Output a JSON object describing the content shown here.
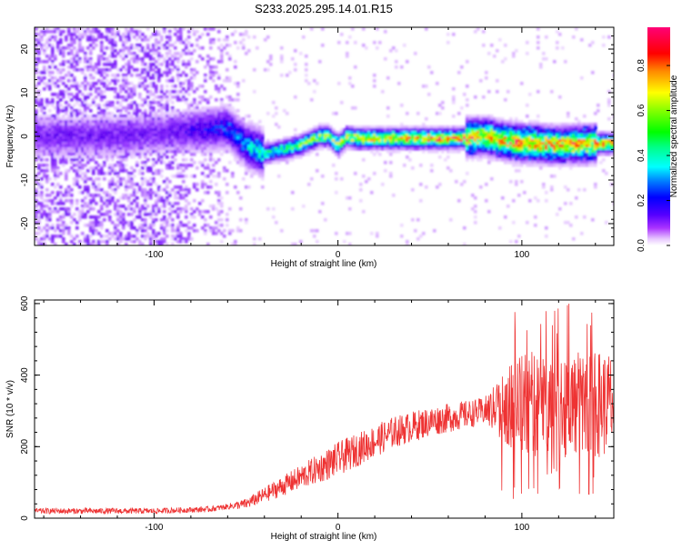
{
  "title": "S233.2025.295.14.01.R15",
  "colors": {
    "snr_line": "#ee3333",
    "background": "#ffffff",
    "axis": "#000000"
  },
  "colorbar": {
    "label": "Normalized spectral amplitude",
    "ticks": [
      0.0,
      0.2,
      0.4,
      0.6,
      0.8
    ],
    "tick_labels": [
      "0.0",
      "0.2",
      "0.4",
      "0.6",
      "0.8"
    ],
    "range": [
      0,
      0.97
    ]
  },
  "chart_data": [
    {
      "type": "heatmap",
      "name": "spectrogram",
      "xlabel": "Height of straight line (km)",
      "ylabel": "Frequency (Hz)",
      "xlim": [
        -165,
        150
      ],
      "ylim": [
        -25,
        25
      ],
      "xticks": [
        -100,
        0,
        100
      ],
      "xtick_labels": [
        "-100",
        "0",
        "100"
      ],
      "yticks": [
        -20,
        -10,
        0,
        10,
        20
      ],
      "ytick_labels": [
        "-20",
        "-10",
        "0",
        "10",
        "20"
      ],
      "ridge": {
        "x": [
          -165,
          -120,
          -90,
          -60,
          -50,
          -40,
          -30,
          -20,
          -10,
          -5,
          0,
          5,
          10,
          30,
          60,
          80,
          90,
          100,
          120,
          150
        ],
        "y": [
          0,
          0,
          1,
          2,
          -2,
          -4,
          -3,
          -2,
          0,
          0,
          -2,
          0,
          -0.5,
          -0.5,
          -0.5,
          0,
          -1,
          -1.5,
          -2,
          -1.5
        ]
      }
    },
    {
      "type": "line",
      "name": "snr",
      "xlabel": "Height of straight line (km)",
      "ylabel": "SNR (10 * v/v)",
      "xlim": [
        -165,
        150
      ],
      "ylim": [
        0,
        610
      ],
      "xticks": [
        -100,
        0,
        100
      ],
      "xtick_labels": [
        "-100",
        "0",
        "100"
      ],
      "yticks": [
        0,
        200,
        400,
        600
      ],
      "ytick_labels": [
        "0",
        "200",
        "400",
        "600"
      ],
      "trend": {
        "x": [
          -165,
          -100,
          -70,
          -50,
          -30,
          -10,
          10,
          30,
          50,
          70,
          90,
          110,
          130,
          150
        ],
        "y": [
          20,
          20,
          25,
          40,
          90,
          140,
          190,
          240,
          270,
          290,
          310,
          320,
          320,
          320
        ]
      }
    }
  ]
}
